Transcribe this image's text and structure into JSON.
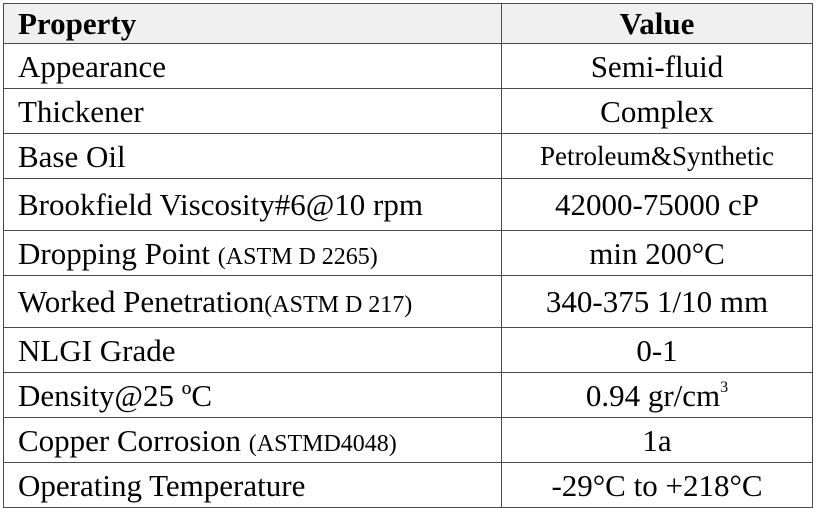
{
  "table": {
    "headers": {
      "property": "Property",
      "value": "Value"
    },
    "rows": [
      {
        "property": "Appearance",
        "note": "",
        "value": "Semi-fluid",
        "sup": ""
      },
      {
        "property": "Thickener",
        "note": "",
        "value": "Complex",
        "sup": ""
      },
      {
        "property": "Base Oil",
        "note": "",
        "value": "Petroleum&Synthetic",
        "sup": ""
      },
      {
        "property": "Brookfield Viscosity#6@10 rpm",
        "note": "",
        "value": "42000-75000 cP",
        "sup": ""
      },
      {
        "property": "Dropping Point ",
        "note": "(ASTM D 2265)",
        "value": "min 200°C",
        "sup": ""
      },
      {
        "property": "Worked Penetration",
        "note": "(ASTM D 217)",
        "value": "340-375 1/10 mm",
        "sup": ""
      },
      {
        "property": "NLGI Grade",
        "note": "",
        "value": "0-1",
        "sup": ""
      },
      {
        "property": "Density@25 ºC",
        "note": "",
        "value": "0.94 gr/cm",
        "sup": "3"
      },
      {
        "property": "Copper Corrosion ",
        "note": "(ASTMD4048)",
        "value": "1a",
        "sup": ""
      },
      {
        "property": "Operating Temperature",
        "note": "",
        "value": "-29°C to +218°C",
        "sup": ""
      }
    ]
  }
}
